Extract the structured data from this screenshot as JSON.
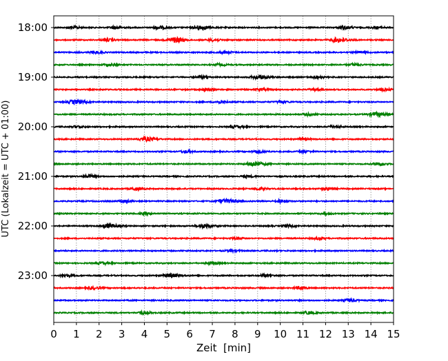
{
  "chart_data": {
    "type": "line",
    "subtype": "helicorder-seismogram",
    "xlabel": "Zeit  [min]",
    "ylabel": "UTC (Lokalzeit = UTC + 01:00)",
    "xlim": [
      0,
      15
    ],
    "xticks": [
      "0",
      "1",
      "2",
      "3",
      "4",
      "5",
      "6",
      "7",
      "8",
      "9",
      "10",
      "11",
      "12",
      "13",
      "14",
      "15"
    ],
    "yticks": [
      {
        "label": "18:00",
        "trace": 0
      },
      {
        "label": "19:00",
        "trace": 4
      },
      {
        "label": "20:00",
        "trace": 8
      },
      {
        "label": "21:00",
        "trace": 12
      },
      {
        "label": "22:00",
        "trace": 16
      },
      {
        "label": "23:00",
        "trace": 20
      }
    ],
    "grid": "vertical dotted at each minute",
    "colors": [
      "#000000",
      "#ff0000",
      "#0000ff",
      "#008000"
    ],
    "trace_interval_min": 15,
    "traces": [
      {
        "start": "18:00",
        "events": [
          [
            0.8,
            3
          ],
          [
            2.7,
            4
          ],
          [
            4.6,
            4
          ],
          [
            6.4,
            5
          ],
          [
            12.8,
            4
          ],
          [
            14.2,
            3
          ]
        ]
      },
      {
        "start": "18:15",
        "events": [
          [
            2.3,
            3
          ],
          [
            5.3,
            7
          ],
          [
            7.0,
            3
          ],
          [
            12.5,
            6
          ]
        ]
      },
      {
        "start": "18:30",
        "events": [
          [
            1.8,
            3
          ],
          [
            7.5,
            3
          ],
          [
            13.5,
            2.5
          ]
        ]
      },
      {
        "start": "18:45",
        "events": [
          [
            2.4,
            3
          ],
          [
            7.3,
            2.5
          ],
          [
            13.2,
            3
          ]
        ]
      },
      {
        "start": "19:00",
        "events": [
          [
            6.5,
            3
          ],
          [
            9.0,
            5
          ],
          [
            11.5,
            3
          ]
        ]
      },
      {
        "start": "19:15",
        "events": [
          [
            6.7,
            4
          ],
          [
            9.1,
            3
          ],
          [
            11.5,
            3
          ],
          [
            14.5,
            3
          ]
        ]
      },
      {
        "start": "19:30",
        "events": [
          [
            0.9,
            5
          ],
          [
            7.3,
            3
          ],
          [
            10.0,
            2.5
          ]
        ]
      },
      {
        "start": "19:45",
        "events": [
          [
            11.2,
            3
          ],
          [
            14.2,
            5
          ]
        ]
      },
      {
        "start": "20:00",
        "events": [
          [
            1.0,
            2.5
          ],
          [
            8.0,
            3
          ],
          [
            12.3,
            3
          ]
        ]
      },
      {
        "start": "20:15",
        "events": [
          [
            4.0,
            5
          ],
          [
            11.0,
            2.5
          ]
        ]
      },
      {
        "start": "20:30",
        "events": [
          [
            5.8,
            3
          ],
          [
            9.0,
            4
          ],
          [
            11.0,
            2.5
          ]
        ]
      },
      {
        "start": "20:45",
        "events": [
          [
            8.8,
            6
          ],
          [
            14.3,
            4
          ]
        ]
      },
      {
        "start": "21:00",
        "events": [
          [
            1.5,
            4
          ],
          [
            8.5,
            2.5
          ]
        ]
      },
      {
        "start": "21:15",
        "events": [
          [
            3.6,
            4
          ],
          [
            9.0,
            3
          ],
          [
            12.0,
            3
          ]
        ]
      },
      {
        "start": "21:30",
        "events": [
          [
            3.1,
            3
          ],
          [
            7.5,
            5
          ],
          [
            10.0,
            4
          ]
        ]
      },
      {
        "start": "21:45",
        "events": [
          [
            4.0,
            2.5
          ],
          [
            12.0,
            2
          ]
        ]
      },
      {
        "start": "22:00",
        "events": [
          [
            2.4,
            5
          ],
          [
            6.6,
            5
          ],
          [
            10.3,
            3
          ]
        ]
      },
      {
        "start": "22:15",
        "events": [
          [
            8.0,
            2.5
          ],
          [
            11.6,
            2.5
          ]
        ]
      },
      {
        "start": "22:30",
        "events": [
          [
            7.8,
            2.5
          ]
        ]
      },
      {
        "start": "22:45",
        "events": [
          [
            2.1,
            3
          ],
          [
            6.9,
            3
          ]
        ]
      },
      {
        "start": "23:00",
        "events": [
          [
            0.5,
            3
          ],
          [
            5.1,
            5
          ],
          [
            9.3,
            3
          ]
        ]
      },
      {
        "start": "23:15",
        "events": [
          [
            1.7,
            3
          ],
          [
            10.8,
            3
          ]
        ]
      },
      {
        "start": "23:30",
        "events": [
          [
            13.0,
            4
          ]
        ]
      },
      {
        "start": "23:45",
        "events": [
          [
            3.9,
            4
          ],
          [
            11.2,
            3.5
          ]
        ]
      }
    ]
  }
}
